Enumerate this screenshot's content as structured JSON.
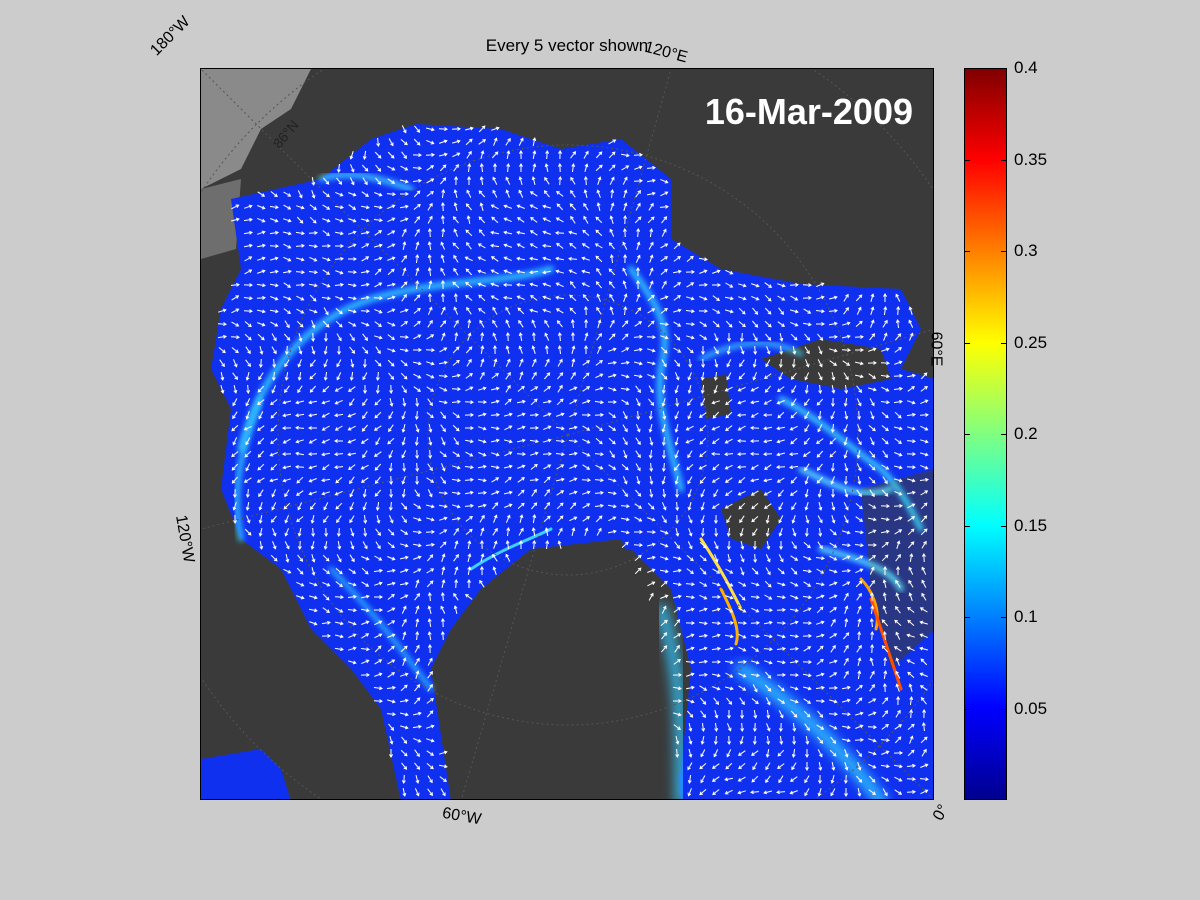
{
  "figure": {
    "title": "Every 5 vector shown",
    "date": "16-Mar-2009"
  },
  "map_labels": {
    "lon_180w": "180°W",
    "lon_120e": "120°E",
    "lon_60e": "60°E",
    "lon_120w": "120°W",
    "lon_60w": "60°W",
    "lon_0": "0°",
    "lat_86n": "86°N"
  },
  "colorbar": {
    "min": 0,
    "max": 0.4,
    "colormap": "jet",
    "ticks": [
      "0.4",
      "0.35",
      "0.3",
      "0.25",
      "0.2",
      "0.15",
      "0.1",
      "0.05"
    ],
    "tick_values": [
      0.4,
      0.35,
      0.3,
      0.25,
      0.2,
      0.15,
      0.1,
      0.05
    ]
  },
  "colors": {
    "background": "#cccccc",
    "land": "#3a3a3a",
    "ocean_low": "#1030f0",
    "vector": "#ffffff"
  }
}
